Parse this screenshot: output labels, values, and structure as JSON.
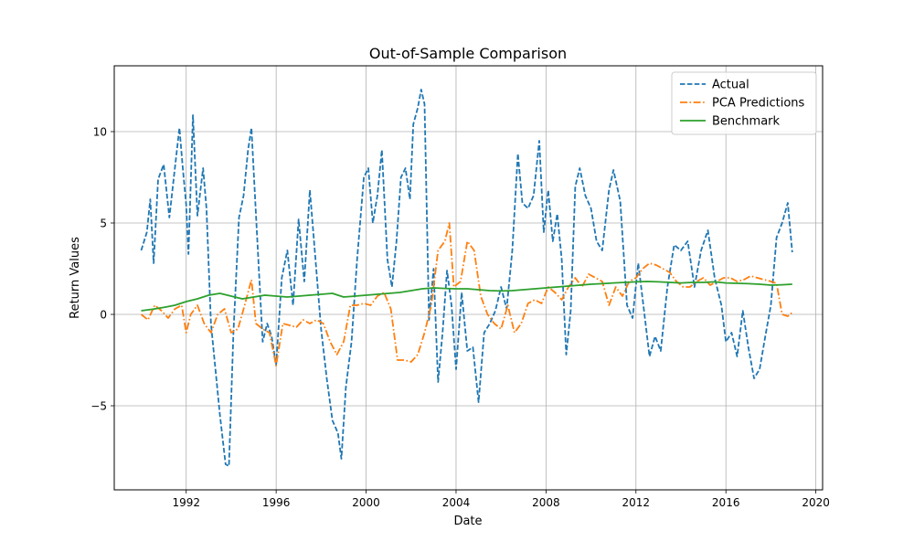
{
  "colors": {
    "actual": "#1f77b4",
    "pca": "#ff7f0e",
    "benchmark": "#2ca02c",
    "grid": "#b0b0b0",
    "axes": "#000000",
    "background": "#ffffff"
  },
  "chart_data": {
    "type": "line",
    "title": "Out-of-Sample Comparison",
    "xlabel": "Date",
    "ylabel": "Return Values",
    "xlim": [
      1988.8,
      2020.3
    ],
    "ylim": [
      -9.6,
      13.6
    ],
    "x_ticks": [
      1992,
      1996,
      2000,
      2004,
      2008,
      2012,
      2016,
      2020
    ],
    "x_tick_labels": [
      "1992",
      "1996",
      "2000",
      "2004",
      "2008",
      "2012",
      "2016",
      "2020"
    ],
    "y_ticks": [
      -5,
      0,
      5,
      10
    ],
    "y_tick_labels": [
      "−5",
      "0",
      "5",
      "10"
    ],
    "grid": true,
    "legend_position": "top-right",
    "series": [
      {
        "name": "Actual",
        "style": "dashed",
        "color_key": "actual",
        "x": [
          1990.0,
          1990.25,
          1990.4,
          1990.55,
          1990.75,
          1991.0,
          1991.25,
          1991.45,
          1991.7,
          1991.85,
          1992.0,
          1992.1,
          1992.3,
          1992.5,
          1992.75,
          1992.9,
          1993.1,
          1993.3,
          1993.5,
          1993.75,
          1993.9,
          1994.1,
          1994.35,
          1994.55,
          1994.75,
          1994.9,
          1995.1,
          1995.4,
          1995.6,
          1995.8,
          1996.0,
          1996.25,
          1996.5,
          1996.75,
          1997.0,
          1997.25,
          1997.5,
          1997.75,
          1998.0,
          1998.25,
          1998.5,
          1998.75,
          1998.9,
          1999.1,
          1999.35,
          1999.6,
          1999.9,
          2000.1,
          2000.3,
          2000.5,
          2000.7,
          2000.95,
          2001.15,
          2001.35,
          2001.55,
          2001.75,
          2001.95,
          2002.1,
          2002.3,
          2002.45,
          2002.6,
          2002.8,
          2003.0,
          2003.2,
          2003.4,
          2003.6,
          2003.8,
          2004.0,
          2004.25,
          2004.5,
          2004.75,
          2005.0,
          2005.25,
          2005.5,
          2005.75,
          2006.0,
          2006.25,
          2006.5,
          2006.75,
          2006.95,
          2007.2,
          2007.45,
          2007.7,
          2007.9,
          2008.1,
          2008.3,
          2008.5,
          2008.7,
          2008.9,
          2009.1,
          2009.3,
          2009.5,
          2009.75,
          2010.0,
          2010.25,
          2010.5,
          2010.8,
          2011.0,
          2011.3,
          2011.6,
          2011.85,
          2012.1,
          2012.35,
          2012.6,
          2012.85,
          2013.1,
          2013.4,
          2013.7,
          2014.0,
          2014.3,
          2014.6,
          2014.9,
          2015.2,
          2015.5,
          2015.8,
          2016.0,
          2016.25,
          2016.5,
          2016.75,
          2017.0,
          2017.25,
          2017.5,
          2017.75,
          2018.0,
          2018.25,
          2018.5,
          2018.75,
          2018.95
        ],
        "y": [
          3.5,
          4.5,
          6.3,
          2.8,
          7.4,
          8.2,
          5.3,
          7.5,
          10.2,
          8.0,
          6.0,
          3.3,
          10.9,
          5.4,
          8.0,
          5.8,
          -0.5,
          -3.0,
          -5.5,
          -8.2,
          -8.3,
          -1.0,
          5.3,
          6.5,
          9.0,
          10.2,
          5.5,
          -1.5,
          -0.5,
          -1.2,
          -2.8,
          2.0,
          3.5,
          0.5,
          5.2,
          1.8,
          6.8,
          3.0,
          -0.8,
          -3.5,
          -5.8,
          -6.5,
          -7.9,
          -4.0,
          -1.5,
          3.0,
          7.5,
          8.0,
          5.0,
          6.5,
          9.0,
          3.0,
          1.5,
          4.0,
          7.5,
          8.0,
          6.3,
          10.4,
          11.3,
          12.3,
          11.5,
          -0.3,
          2.5,
          -3.7,
          -1.0,
          2.4,
          0.5,
          -3.0,
          1.2,
          -2.0,
          -1.8,
          -4.8,
          -1.0,
          -0.5,
          0.2,
          1.5,
          0.3,
          3.5,
          8.8,
          6.1,
          5.8,
          6.5,
          9.5,
          4.5,
          6.8,
          4.0,
          5.5,
          3.0,
          -2.2,
          0.2,
          7.0,
          8.0,
          6.5,
          5.8,
          4.0,
          3.5,
          6.8,
          7.9,
          6.2,
          0.5,
          -0.2,
          2.8,
          0.3,
          -2.3,
          -1.2,
          -2.0,
          1.5,
          3.8,
          3.5,
          4.0,
          1.5,
          3.5,
          4.6,
          2.0,
          0.5,
          -1.5,
          -1.0,
          -2.3,
          0.2,
          -1.8,
          -3.5,
          -3.0,
          -1.2,
          0.5,
          4.2,
          5.0,
          6.1,
          3.4
        ]
      },
      {
        "name": "PCA Predictions",
        "style": "dashdot",
        "color_key": "pca",
        "x": [
          1990.0,
          1990.3,
          1990.6,
          1990.9,
          1991.2,
          1991.5,
          1991.8,
          1992.0,
          1992.2,
          1992.5,
          1992.8,
          1993.1,
          1993.4,
          1993.7,
          1994.0,
          1994.3,
          1994.6,
          1994.9,
          1995.1,
          1995.4,
          1995.7,
          1996.0,
          1996.3,
          1996.6,
          1996.9,
          1997.2,
          1997.5,
          1997.8,
          1998.1,
          1998.4,
          1998.7,
          1999.0,
          1999.3,
          1999.6,
          1999.9,
          2000.2,
          2000.5,
          2000.8,
          2001.1,
          2001.4,
          2001.7,
          2002.0,
          2002.3,
          2002.6,
          2002.9,
          2003.2,
          2003.5,
          2003.7,
          2003.9,
          2004.2,
          2004.5,
          2004.8,
          2005.1,
          2005.4,
          2005.7,
          2006.0,
          2006.3,
          2006.6,
          2006.9,
          2007.2,
          2007.5,
          2007.8,
          2008.1,
          2008.4,
          2008.7,
          2009.0,
          2009.3,
          2009.6,
          2009.9,
          2010.2,
          2010.5,
          2010.8,
          2011.1,
          2011.4,
          2011.7,
          2012.0,
          2012.3,
          2012.6,
          2012.9,
          2013.2,
          2013.5,
          2013.8,
          2014.1,
          2014.4,
          2014.7,
          2015.0,
          2015.3,
          2015.6,
          2015.9,
          2016.2,
          2016.5,
          2016.8,
          2017.1,
          2017.4,
          2017.7,
          2018.0,
          2018.25,
          2018.5,
          2018.75,
          2018.95
        ],
        "y": [
          0.0,
          -0.3,
          0.5,
          0.2,
          -0.2,
          0.3,
          0.5,
          -1.0,
          0.0,
          0.5,
          -0.5,
          -1.0,
          0.0,
          0.3,
          -1.0,
          -0.8,
          0.5,
          1.9,
          -0.5,
          -0.8,
          -1.0,
          -2.8,
          -0.5,
          -0.6,
          -0.7,
          -0.3,
          -0.5,
          -0.3,
          -0.5,
          -1.5,
          -2.2,
          -1.5,
          0.5,
          0.5,
          0.6,
          0.5,
          1.0,
          1.2,
          0.3,
          -2.5,
          -2.5,
          -2.6,
          -2.2,
          -1.0,
          0.5,
          3.5,
          4.0,
          5.0,
          1.5,
          1.8,
          4.0,
          3.5,
          1.0,
          0.0,
          -0.5,
          -0.8,
          0.5,
          -1.0,
          -0.5,
          0.6,
          0.8,
          0.6,
          1.5,
          1.2,
          0.8,
          1.5,
          2.0,
          1.5,
          2.2,
          2.0,
          1.8,
          0.5,
          1.5,
          1.0,
          1.8,
          2.0,
          2.5,
          2.8,
          2.7,
          2.5,
          2.3,
          1.8,
          1.5,
          1.5,
          1.8,
          2.0,
          1.6,
          1.8,
          2.0,
          2.0,
          1.8,
          1.9,
          2.1,
          2.0,
          1.9,
          1.8,
          1.7,
          0.0,
          -0.1,
          0.1
        ]
      },
      {
        "name": "Benchmark",
        "style": "solid",
        "color_key": "benchmark",
        "x": [
          1990.0,
          1990.5,
          1991.0,
          1991.5,
          1992.0,
          1992.5,
          1993.0,
          1993.5,
          1994.0,
          1994.5,
          1995.0,
          1995.5,
          1996.0,
          1996.5,
          1997.0,
          1997.5,
          1998.0,
          1998.5,
          1999.0,
          1999.5,
          2000.0,
          2000.5,
          2001.0,
          2001.5,
          2002.0,
          2002.5,
          2003.0,
          2003.5,
          2004.0,
          2004.5,
          2005.0,
          2005.5,
          2006.0,
          2006.5,
          2007.0,
          2007.5,
          2008.0,
          2008.5,
          2009.0,
          2009.5,
          2010.0,
          2010.5,
          2011.0,
          2011.5,
          2012.0,
          2012.5,
          2013.0,
          2013.5,
          2014.0,
          2014.5,
          2015.0,
          2015.5,
          2016.0,
          2016.5,
          2017.0,
          2017.5,
          2018.0,
          2018.5,
          2018.95
        ],
        "y": [
          0.2,
          0.28,
          0.38,
          0.5,
          0.7,
          0.85,
          1.05,
          1.15,
          1.0,
          0.85,
          0.95,
          1.05,
          1.0,
          0.95,
          1.0,
          1.05,
          1.1,
          1.15,
          0.95,
          1.0,
          1.05,
          1.1,
          1.15,
          1.2,
          1.3,
          1.4,
          1.45,
          1.42,
          1.4,
          1.4,
          1.35,
          1.3,
          1.28,
          1.3,
          1.35,
          1.4,
          1.45,
          1.5,
          1.55,
          1.6,
          1.65,
          1.68,
          1.72,
          1.75,
          1.78,
          1.8,
          1.78,
          1.75,
          1.72,
          1.75,
          1.75,
          1.78,
          1.72,
          1.7,
          1.68,
          1.65,
          1.6,
          1.62,
          1.65
        ]
      }
    ]
  }
}
